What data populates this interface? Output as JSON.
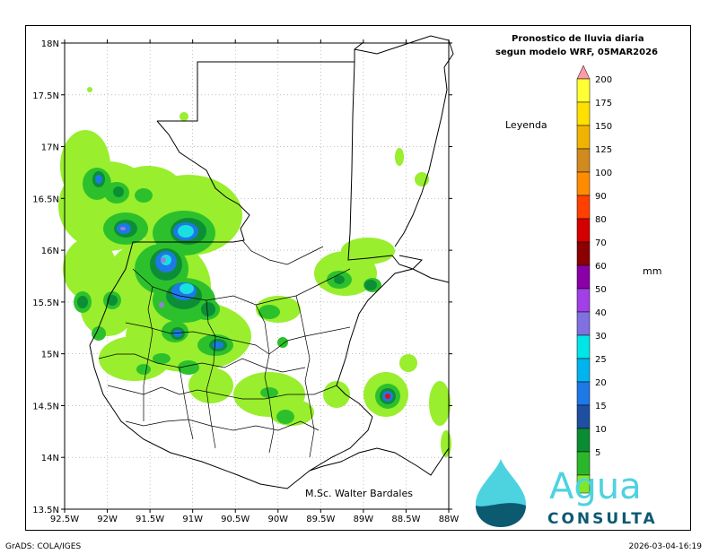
{
  "title_line1": "Pronostico de lluvia diaria",
  "title_line2": "segun modelo WRF,  05MAR2026",
  "legend_title": "Leyenda",
  "unit": "mm",
  "author": "M.Sc. Walter Bardales",
  "footer_left": "GrADS: COLA/IGES",
  "footer_right": "2026-03-04-16:19",
  "logo": {
    "word1": "Agua",
    "word2": "CONSULTA"
  },
  "lat_labels": [
    "18N",
    "17.5N",
    "17N",
    "16.5N",
    "16N",
    "15.5N",
    "15N",
    "14.5N",
    "14N",
    "13.5N"
  ],
  "lon_labels": [
    "92.5W",
    "92W",
    "91.5W",
    "91W",
    "90.5W",
    "90W",
    "89.5W",
    "89W",
    "88.5W",
    "88W"
  ],
  "legend_scale": [
    {
      "value": "200",
      "color": "#ffff33"
    },
    {
      "value": "175",
      "color": "#ffe000"
    },
    {
      "value": "150",
      "color": "#f0b400"
    },
    {
      "value": "125",
      "color": "#d08a1e"
    },
    {
      "value": "100",
      "color": "#ff8c00"
    },
    {
      "value": "90",
      "color": "#ff4000"
    },
    {
      "value": "80",
      "color": "#d40000"
    },
    {
      "value": "70",
      "color": "#8b0000"
    },
    {
      "value": "60",
      "color": "#8a00a8"
    },
    {
      "value": "50",
      "color": "#a040e6"
    },
    {
      "value": "40",
      "color": "#8070e0"
    },
    {
      "value": "30",
      "color": "#00e6e6"
    },
    {
      "value": "25",
      "color": "#00b4f0"
    },
    {
      "value": "20",
      "color": "#1e78e6"
    },
    {
      "value": "15",
      "color": "#1e4fa0"
    },
    {
      "value": "10",
      "color": "#0a8c32"
    },
    {
      "value": "5",
      "color": "#2ab82a"
    },
    {
      "value": "",
      "color": "#80e82a"
    }
  ],
  "colors": {
    "light": "#99ee2e",
    "med": "#2cc12c",
    "dark": "#0c8e36",
    "blue": "#1e78e6",
    "cyan": "#19e0e0",
    "violet": "#9a7ce0",
    "red": "#e01010",
    "logo_teal": "#4dd3e0",
    "logo_dark": "#0c5a70"
  }
}
